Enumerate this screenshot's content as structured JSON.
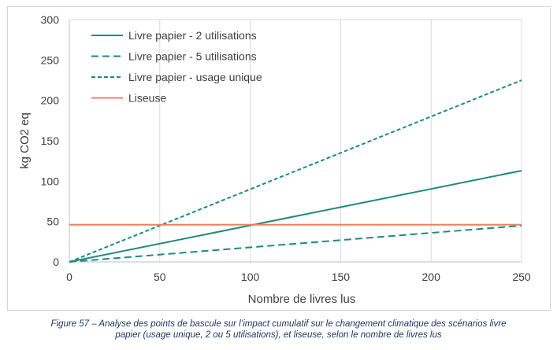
{
  "chart_data": {
    "type": "line",
    "xlabel": "Nombre de livres lus",
    "ylabel": "kg CO2 eq",
    "xlim": [
      0,
      250
    ],
    "ylim": [
      0,
      300
    ],
    "x_ticks": [
      0,
      50,
      100,
      150,
      200,
      250
    ],
    "y_ticks": [
      0,
      50,
      100,
      150,
      200,
      250,
      300
    ],
    "grid": "vertical",
    "legend_position": "top-left",
    "series": [
      {
        "name": "Livre papier - 2 utilisations",
        "x": [
          0,
          250
        ],
        "y": [
          0,
          113
        ],
        "color": "#1e8a7e",
        "style": "solid"
      },
      {
        "name": "Livre papier - 5 utilisations",
        "x": [
          0,
          250
        ],
        "y": [
          0,
          45
        ],
        "color": "#1e8a7e",
        "style": "dashed"
      },
      {
        "name": "Livre papier - usage unique",
        "x": [
          0,
          250
        ],
        "y": [
          0,
          225
        ],
        "color": "#1e8a7e",
        "style": "dotted"
      },
      {
        "name": "Liseuse",
        "x": [
          0,
          250
        ],
        "y": [
          46,
          46
        ],
        "color": "#ef7f62",
        "style": "solid"
      }
    ]
  },
  "caption": {
    "line1": "Figure 57 – Analyse des points de bascule sur l’impact cumulatif sur le changement climatique des scénarios livre",
    "line2": "papier (usage unique, 2 ou 5 utilisations), et liseuse, selon le nombre de livres lus"
  }
}
